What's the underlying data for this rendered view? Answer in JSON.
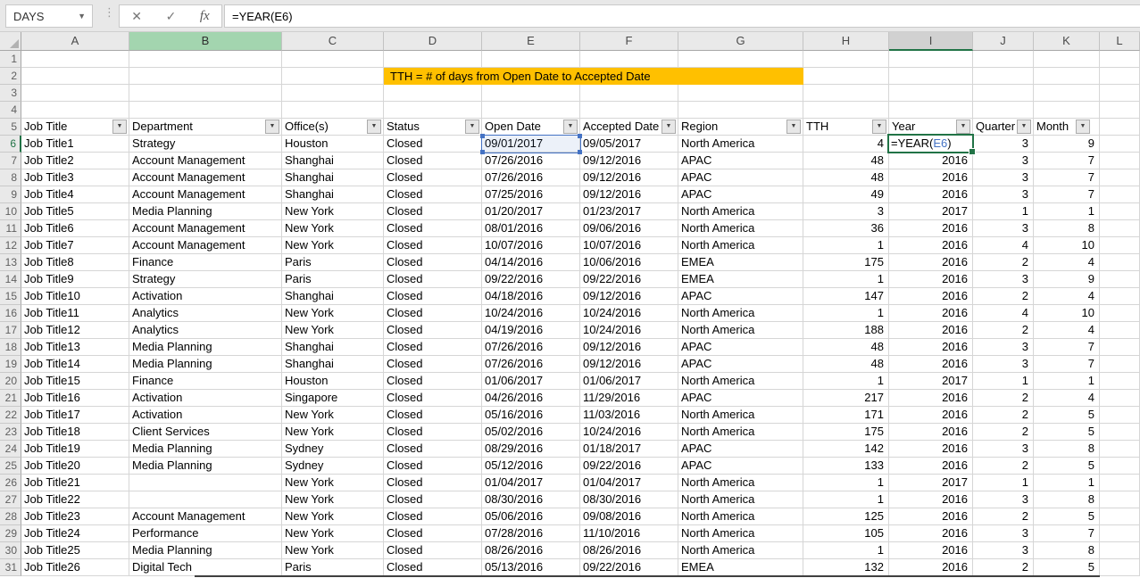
{
  "formula_bar": {
    "name_box": "DAYS",
    "formula": "=YEAR(E6)",
    "cancel_icon": "✕",
    "enter_icon": "✓",
    "fx_icon": "fx",
    "name_box_arrow": "▼"
  },
  "banner": {
    "text": "TTH = # of days from Open Date to Accepted Date",
    "bg_color": "#FFC000"
  },
  "icons": {
    "filter": "▼",
    "select_all": "◢"
  },
  "edit_cell": {
    "address": "I6",
    "prefix": "=YEAR(",
    "ref": "E6",
    "suffix": ")"
  },
  "colors": {
    "accent_green": "#217346",
    "reference_blue": "#4472C4",
    "banner_yellow": "#FFC000",
    "header_highlight_green": "#A3D5AF",
    "header_highlight_gray": "#D1D1D1"
  },
  "grid": {
    "column_letters": [
      "A",
      "B",
      "C",
      "D",
      "E",
      "F",
      "G",
      "H",
      "I",
      "J",
      "K",
      "L"
    ],
    "highlighted_column": "B",
    "active_column": "I",
    "active_row": 6,
    "header_row": 5,
    "total_rows": 31,
    "table_headers": [
      "Job Title",
      "Department",
      "Office(s)",
      "Status",
      "Open Date",
      "Accepted Date",
      "Region",
      "TTH",
      "Year",
      "Quarter",
      "Month"
    ],
    "data_rows": [
      [
        "Job Title1",
        "Strategy",
        "Houston",
        "Closed",
        "09/01/2017",
        "09/05/2017",
        "North America",
        "4",
        "",
        "3",
        "9"
      ],
      [
        "Job Title2",
        "Account Management",
        "Shanghai",
        "Closed",
        "07/26/2016",
        "09/12/2016",
        "APAC",
        "48",
        "2016",
        "3",
        "7"
      ],
      [
        "Job Title3",
        "Account Management",
        "Shanghai",
        "Closed",
        "07/26/2016",
        "09/12/2016",
        "APAC",
        "48",
        "2016",
        "3",
        "7"
      ],
      [
        "Job Title4",
        "Account Management",
        "Shanghai",
        "Closed",
        "07/25/2016",
        "09/12/2016",
        "APAC",
        "49",
        "2016",
        "3",
        "7"
      ],
      [
        "Job Title5",
        "Media Planning",
        "New York",
        "Closed",
        "01/20/2017",
        "01/23/2017",
        "North America",
        "3",
        "2017",
        "1",
        "1"
      ],
      [
        "Job Title6",
        "Account Management",
        "New York",
        "Closed",
        "08/01/2016",
        "09/06/2016",
        "North America",
        "36",
        "2016",
        "3",
        "8"
      ],
      [
        "Job Title7",
        "Account Management",
        "New York",
        "Closed",
        "10/07/2016",
        "10/07/2016",
        "North America",
        "1",
        "2016",
        "4",
        "10"
      ],
      [
        "Job Title8",
        "Finance",
        "Paris",
        "Closed",
        "04/14/2016",
        "10/06/2016",
        "EMEA",
        "175",
        "2016",
        "2",
        "4"
      ],
      [
        "Job Title9",
        "Strategy",
        "Paris",
        "Closed",
        "09/22/2016",
        "09/22/2016",
        "EMEA",
        "1",
        "2016",
        "3",
        "9"
      ],
      [
        "Job Title10",
        "Activation",
        "Shanghai",
        "Closed",
        "04/18/2016",
        "09/12/2016",
        "APAC",
        "147",
        "2016",
        "2",
        "4"
      ],
      [
        "Job Title11",
        "Analytics",
        "New York",
        "Closed",
        "10/24/2016",
        "10/24/2016",
        "North America",
        "1",
        "2016",
        "4",
        "10"
      ],
      [
        "Job Title12",
        "Analytics",
        "New York",
        "Closed",
        "04/19/2016",
        "10/24/2016",
        "North America",
        "188",
        "2016",
        "2",
        "4"
      ],
      [
        "Job Title13",
        "Media Planning",
        "Shanghai",
        "Closed",
        "07/26/2016",
        "09/12/2016",
        "APAC",
        "48",
        "2016",
        "3",
        "7"
      ],
      [
        "Job Title14",
        "Media Planning",
        "Shanghai",
        "Closed",
        "07/26/2016",
        "09/12/2016",
        "APAC",
        "48",
        "2016",
        "3",
        "7"
      ],
      [
        "Job Title15",
        "Finance",
        "Houston",
        "Closed",
        "01/06/2017",
        "01/06/2017",
        "North America",
        "1",
        "2017",
        "1",
        "1"
      ],
      [
        "Job Title16",
        "Activation",
        "Singapore",
        "Closed",
        "04/26/2016",
        "11/29/2016",
        "APAC",
        "217",
        "2016",
        "2",
        "4"
      ],
      [
        "Job Title17",
        "Activation",
        "New York",
        "Closed",
        "05/16/2016",
        "11/03/2016",
        "North America",
        "171",
        "2016",
        "2",
        "5"
      ],
      [
        "Job Title18",
        "Client Services",
        "New York",
        "Closed",
        "05/02/2016",
        "10/24/2016",
        "North America",
        "175",
        "2016",
        "2",
        "5"
      ],
      [
        "Job Title19",
        "Media Planning",
        "Sydney",
        "Closed",
        "08/29/2016",
        "01/18/2017",
        "APAC",
        "142",
        "2016",
        "3",
        "8"
      ],
      [
        "Job Title20",
        "Media Planning",
        "Sydney",
        "Closed",
        "05/12/2016",
        "09/22/2016",
        "APAC",
        "133",
        "2016",
        "2",
        "5"
      ],
      [
        "Job Title21",
        "",
        "New York",
        "Closed",
        "01/04/2017",
        "01/04/2017",
        "North America",
        "1",
        "2017",
        "1",
        "1"
      ],
      [
        "Job Title22",
        "",
        "New York",
        "Closed",
        "08/30/2016",
        "08/30/2016",
        "North America",
        "1",
        "2016",
        "3",
        "8"
      ],
      [
        "Job Title23",
        "Account Management",
        "New York",
        "Closed",
        "05/06/2016",
        "09/08/2016",
        "North America",
        "125",
        "2016",
        "2",
        "5"
      ],
      [
        "Job Title24",
        "Performance",
        "New York",
        "Closed",
        "07/28/2016",
        "11/10/2016",
        "North America",
        "105",
        "2016",
        "3",
        "7"
      ],
      [
        "Job Title25",
        "Media Planning",
        "New York",
        "Closed",
        "08/26/2016",
        "08/26/2016",
        "North America",
        "1",
        "2016",
        "3",
        "8"
      ],
      [
        "Job Title26",
        "Digital Tech",
        "Paris",
        "Closed",
        "05/13/2016",
        "09/22/2016",
        "EMEA",
        "132",
        "2016",
        "2",
        "5"
      ]
    ]
  }
}
